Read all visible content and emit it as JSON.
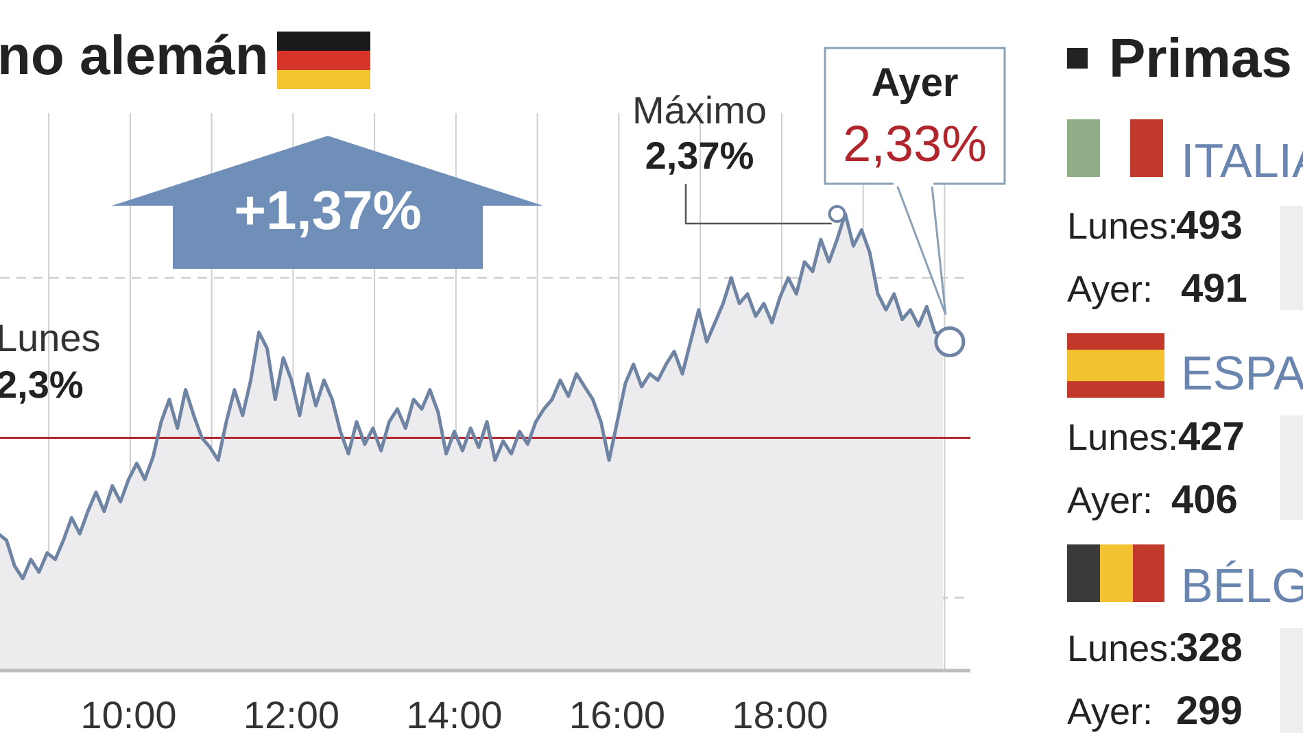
{
  "chart_data": {
    "type": "line",
    "title": "Bono alemán",
    "title_visible": "no alemán",
    "x_ticks": [
      "10:00",
      "12:00",
      "14:00",
      "16:00",
      "18:00"
    ],
    "x_partial_tick": "0",
    "ylim": [
      2.2,
      2.4
    ],
    "grid": true,
    "baseline": {
      "label": "Lunes",
      "value": "2,3%",
      "y": 2.3,
      "color": "#b0262c"
    },
    "series": [
      {
        "color": "#6f83a3",
        "points": [
          [
            8.0,
            2.29
          ],
          [
            8.1,
            2.283
          ],
          [
            8.2,
            2.268
          ],
          [
            8.3,
            2.262
          ],
          [
            8.4,
            2.27
          ],
          [
            8.5,
            2.268
          ],
          [
            8.6,
            2.26
          ],
          [
            8.7,
            2.256
          ],
          [
            8.8,
            2.262
          ],
          [
            8.9,
            2.258
          ],
          [
            9.0,
            2.264
          ],
          [
            9.1,
            2.262
          ],
          [
            9.2,
            2.268
          ],
          [
            9.3,
            2.275
          ],
          [
            9.4,
            2.27
          ],
          [
            9.5,
            2.277
          ],
          [
            9.6,
            2.283
          ],
          [
            9.7,
            2.277
          ],
          [
            9.8,
            2.285
          ],
          [
            9.9,
            2.28
          ],
          [
            10.0,
            2.287
          ],
          [
            10.1,
            2.292
          ],
          [
            10.2,
            2.287
          ],
          [
            10.3,
            2.294
          ],
          [
            10.4,
            2.305
          ],
          [
            10.5,
            2.312
          ],
          [
            10.6,
            2.303
          ],
          [
            10.7,
            2.315
          ],
          [
            10.8,
            2.307
          ],
          [
            10.9,
            2.3
          ],
          [
            11.0,
            2.297
          ],
          [
            11.1,
            2.293
          ],
          [
            11.2,
            2.305
          ],
          [
            11.3,
            2.315
          ],
          [
            11.4,
            2.307
          ],
          [
            11.5,
            2.318
          ],
          [
            11.6,
            2.333
          ],
          [
            11.7,
            2.328
          ],
          [
            11.8,
            2.312
          ],
          [
            11.9,
            2.325
          ],
          [
            12.0,
            2.318
          ],
          [
            12.1,
            2.307
          ],
          [
            12.2,
            2.32
          ],
          [
            12.3,
            2.31
          ],
          [
            12.4,
            2.318
          ],
          [
            12.5,
            2.312
          ],
          [
            12.6,
            2.302
          ],
          [
            12.7,
            2.295
          ],
          [
            12.8,
            2.305
          ],
          [
            12.9,
            2.298
          ],
          [
            13.0,
            2.303
          ],
          [
            13.1,
            2.296
          ],
          [
            13.2,
            2.305
          ],
          [
            13.3,
            2.309
          ],
          [
            13.4,
            2.303
          ],
          [
            13.5,
            2.312
          ],
          [
            13.6,
            2.309
          ],
          [
            13.7,
            2.315
          ],
          [
            13.8,
            2.308
          ],
          [
            13.9,
            2.295
          ],
          [
            14.0,
            2.302
          ],
          [
            14.1,
            2.296
          ],
          [
            14.2,
            2.303
          ],
          [
            14.3,
            2.297
          ],
          [
            14.4,
            2.305
          ],
          [
            14.5,
            2.293
          ],
          [
            14.6,
            2.299
          ],
          [
            14.7,
            2.295
          ],
          [
            14.8,
            2.302
          ],
          [
            14.9,
            2.298
          ],
          [
            15.0,
            2.305
          ],
          [
            15.1,
            2.309
          ],
          [
            15.2,
            2.312
          ],
          [
            15.3,
            2.318
          ],
          [
            15.4,
            2.313
          ],
          [
            15.5,
            2.32
          ],
          [
            15.6,
            2.316
          ],
          [
            15.7,
            2.312
          ],
          [
            15.8,
            2.305
          ],
          [
            15.9,
            2.293
          ],
          [
            16.0,
            2.305
          ],
          [
            16.1,
            2.317
          ],
          [
            16.2,
            2.323
          ],
          [
            16.3,
            2.316
          ],
          [
            16.4,
            2.32
          ],
          [
            16.5,
            2.318
          ],
          [
            16.6,
            2.323
          ],
          [
            16.7,
            2.327
          ],
          [
            16.8,
            2.32
          ],
          [
            16.9,
            2.33
          ],
          [
            17.0,
            2.34
          ],
          [
            17.1,
            2.33
          ],
          [
            17.2,
            2.336
          ],
          [
            17.3,
            2.342
          ],
          [
            17.4,
            2.35
          ],
          [
            17.5,
            2.342
          ],
          [
            17.6,
            2.345
          ],
          [
            17.7,
            2.338
          ],
          [
            17.8,
            2.342
          ],
          [
            17.9,
            2.336
          ],
          [
            18.0,
            2.344
          ],
          [
            18.1,
            2.35
          ],
          [
            18.2,
            2.345
          ],
          [
            18.3,
            2.355
          ],
          [
            18.4,
            2.352
          ],
          [
            18.5,
            2.362
          ],
          [
            18.6,
            2.355
          ],
          [
            18.7,
            2.362
          ],
          [
            18.8,
            2.37
          ],
          [
            18.9,
            2.36
          ],
          [
            19.0,
            2.365
          ],
          [
            19.1,
            2.358
          ],
          [
            19.2,
            2.345
          ],
          [
            19.3,
            2.34
          ],
          [
            19.4,
            2.345
          ],
          [
            19.5,
            2.337
          ],
          [
            19.6,
            2.34
          ],
          [
            19.7,
            2.335
          ],
          [
            19.8,
            2.341
          ],
          [
            19.9,
            2.333
          ],
          [
            20.0,
            2.332
          ]
        ]
      }
    ],
    "annotations": {
      "max_label": "Máximo",
      "max_value": "2,37%",
      "max_x": 18.7,
      "max_y": 2.37,
      "change_value": "+1,37%",
      "last_label": "Ayer",
      "last_value": "2,33%",
      "last_x": 20.1,
      "last_y": 2.33
    }
  },
  "primas": {
    "title": "Primas",
    "countries": [
      {
        "name": "ITALIA",
        "flag": [
          "#8fae88",
          "#ffffff",
          "#c0392b"
        ],
        "rows": [
          {
            "label": "Lunes:",
            "value": "493"
          },
          {
            "label": "Ayer:",
            "value": "491"
          }
        ]
      },
      {
        "name": "ESPAÑA",
        "flag": [
          "#c0392b",
          "#f2c230",
          "#c0392b"
        ],
        "rows": [
          {
            "label": "Lunes:",
            "value": "427"
          },
          {
            "label": "Ayer:",
            "value": "406"
          }
        ]
      },
      {
        "name": "BÉLGICA",
        "flag": [
          "#3a3a3a",
          "#f2c230",
          "#c0392b"
        ],
        "rows": [
          {
            "label": "Lunes:",
            "value": "328"
          },
          {
            "label": "Ayer:",
            "value": "299"
          }
        ]
      }
    ]
  },
  "colors": {
    "arrow": "#6f8fb8",
    "line": "#6f83a3",
    "fill": "#ececee",
    "grid": "#cfcfcf",
    "baseline": "#b0262c",
    "germany_flag": [
      "#1a1a1a",
      "#d8352a",
      "#f3c42f"
    ]
  }
}
